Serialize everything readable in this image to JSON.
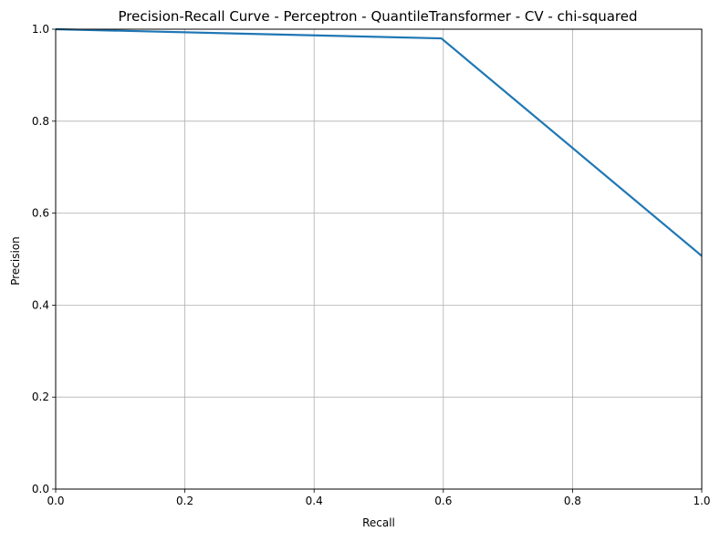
{
  "chart_data": {
    "type": "line",
    "title": "Precision-Recall Curve - Perceptron - QuantileTransformer - CV - chi-squared",
    "xlabel": "Recall",
    "ylabel": "Precision",
    "xlim": [
      0.0,
      1.0
    ],
    "ylim": [
      0.0,
      1.0
    ],
    "x_ticks": [
      "0.0",
      "0.2",
      "0.4",
      "0.6",
      "0.8",
      "1.0"
    ],
    "y_ticks": [
      "0.0",
      "0.2",
      "0.4",
      "0.6",
      "0.8",
      "1.0"
    ],
    "grid": true,
    "legend": "none",
    "series": [
      {
        "color": "#1f77b4",
        "x": [
          0.0,
          0.597,
          1.0
        ],
        "y": [
          1.0,
          0.98,
          0.507
        ]
      }
    ]
  }
}
